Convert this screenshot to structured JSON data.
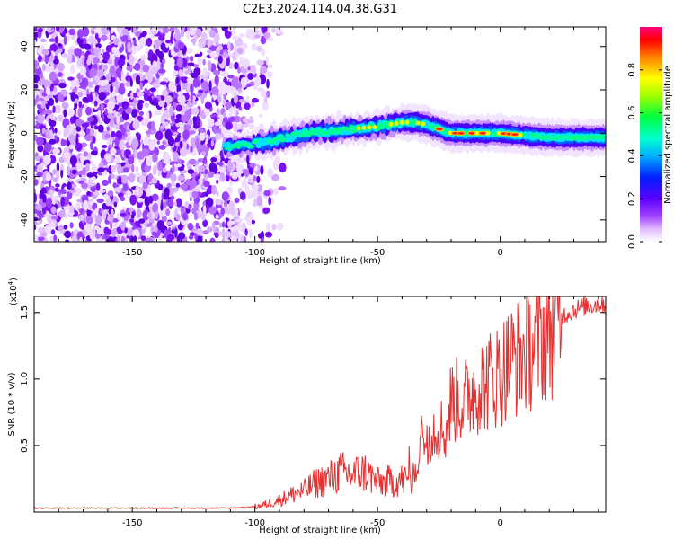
{
  "title": "C2E3.2024.114.04.38.G31",
  "chart_data": [
    {
      "type": "heatmap",
      "xlabel": "Height of straight line (km)",
      "ylabel": "Frequency (Hz)",
      "xlim": [
        -190,
        43
      ],
      "ylim": [
        -50,
        49
      ],
      "xticks": [
        -150,
        -100,
        -50,
        0
      ],
      "yticks": [
        -40,
        -20,
        0,
        20,
        40
      ],
      "grid": false,
      "colorbar": {
        "label": "Normalized spectral amplitude",
        "range": [
          0,
          1
        ],
        "ticks": [
          "0.0",
          "0.2",
          "0.4",
          "0.6",
          "0.8"
        ],
        "colors": [
          "#ffffff",
          "#b040ff",
          "#7000ff",
          "#0000ff",
          "#00b0ff",
          "#00ffc0",
          "#00ff00",
          "#ffff00",
          "#ff8000",
          "#ff0000",
          "#ff0080"
        ]
      },
      "ridge": {
        "x": [
          -110,
          -100,
          -90,
          -80,
          -70,
          -60,
          -50,
          -40,
          -35,
          -30,
          -20,
          -10,
          0,
          10,
          20,
          30,
          43
        ],
        "y": [
          -6,
          -5,
          -3,
          0,
          1,
          2,
          3,
          5,
          5,
          4,
          0,
          0,
          0,
          -1,
          -2,
          -2,
          -2
        ]
      }
    },
    {
      "type": "line",
      "xlabel": "Height of straight line (km)",
      "ylabel": "SNR (10 * v/v)",
      "ymultiplier": "(x10",
      "ymultiplier_exp": "4",
      "ymultiplier_close": ")",
      "xlim": [
        -190,
        43
      ],
      "ylim": [
        0,
        1.62
      ],
      "xticks": [
        -150,
        -100,
        -50,
        0
      ],
      "yticks": [
        "0.5",
        "1.0",
        "1.5"
      ],
      "ytick_values": [
        0.5,
        1.0,
        1.5
      ],
      "grid": false,
      "series": [
        {
          "color": "#e83030",
          "x": [
            -190,
            -170,
            -150,
            -130,
            -110,
            -100,
            -95,
            -90,
            -85,
            -80,
            -75,
            -70,
            -65,
            -60,
            -55,
            -50,
            -45,
            -40,
            -35,
            -32,
            -30,
            -28,
            -25,
            -22,
            -20,
            -15,
            -10,
            -5,
            0,
            5,
            10,
            15,
            20,
            25,
            30,
            35,
            43
          ],
          "y": [
            0.03,
            0.03,
            0.03,
            0.03,
            0.03,
            0.04,
            0.06,
            0.09,
            0.13,
            0.16,
            0.22,
            0.25,
            0.3,
            0.28,
            0.3,
            0.22,
            0.23,
            0.24,
            0.25,
            0.55,
            0.58,
            0.62,
            0.65,
            0.6,
            0.85,
            0.82,
            0.95,
            0.98,
            1.05,
            1.15,
            1.2,
            1.28,
            1.38,
            1.47,
            1.52,
            1.55,
            1.57
          ]
        }
      ]
    }
  ]
}
